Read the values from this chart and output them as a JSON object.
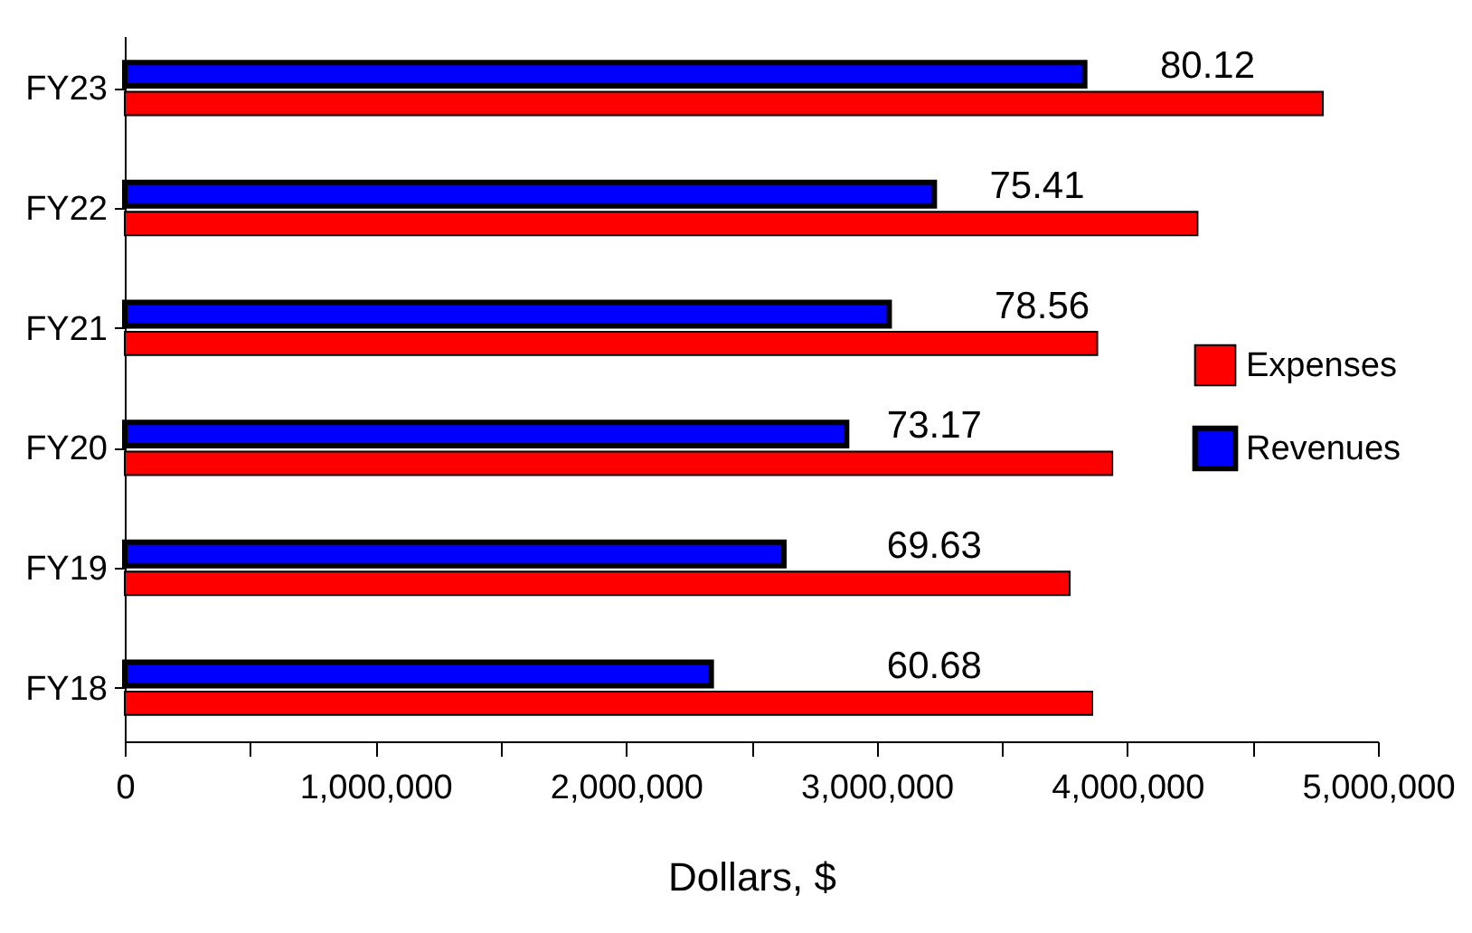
{
  "chart_data": {
    "type": "bar",
    "orientation": "horizontal",
    "xlabel": "Dollars, $",
    "categories": [
      "FY23",
      "FY22",
      "FY21",
      "FY20",
      "FY19",
      "FY18"
    ],
    "series": [
      {
        "name": "Expenses",
        "color": "#ff0000",
        "values": [
          4780000,
          4280000,
          3880000,
          3940000,
          3770000,
          3860000
        ]
      },
      {
        "name": "Revenues",
        "color": "#0000ff",
        "values": [
          3830000,
          3230000,
          3050000,
          2880000,
          2630000,
          2340000
        ]
      }
    ],
    "xlim": [
      0,
      5000000
    ],
    "xticks": [
      0,
      {
        "value": 500000,
        "label": null
      },
      {
        "value": 1000000,
        "label": "1,000,000"
      },
      {
        "value": 1500000,
        "label": null
      },
      {
        "value": 2000000,
        "label": "2,000,000"
      },
      {
        "value": 2500000,
        "label": null
      },
      {
        "value": 3000000,
        "label": "3,000,000"
      },
      {
        "value": 3500000,
        "label": null
      },
      {
        "value": 4000000,
        "label": "4,000,000"
      },
      {
        "value": 4500000,
        "label": null
      },
      {
        "value": 5000000,
        "label": "5,000,000"
      }
    ],
    "annotations": [
      {
        "text": "80.12",
        "x": 4320000,
        "y": "FY23"
      },
      {
        "text": "75.41",
        "x": 3640000,
        "y": "FY22"
      },
      {
        "text": "78.56",
        "x": 3660000,
        "y": "FY21"
      },
      {
        "text": "73.17",
        "x": 3230000,
        "y": "FY20"
      },
      {
        "text": "69.63",
        "x": 3230000,
        "y": "FY19"
      },
      {
        "text": "60.68",
        "x": 3230000,
        "y": "FY18"
      }
    ],
    "legend": "right",
    "grid": false
  }
}
